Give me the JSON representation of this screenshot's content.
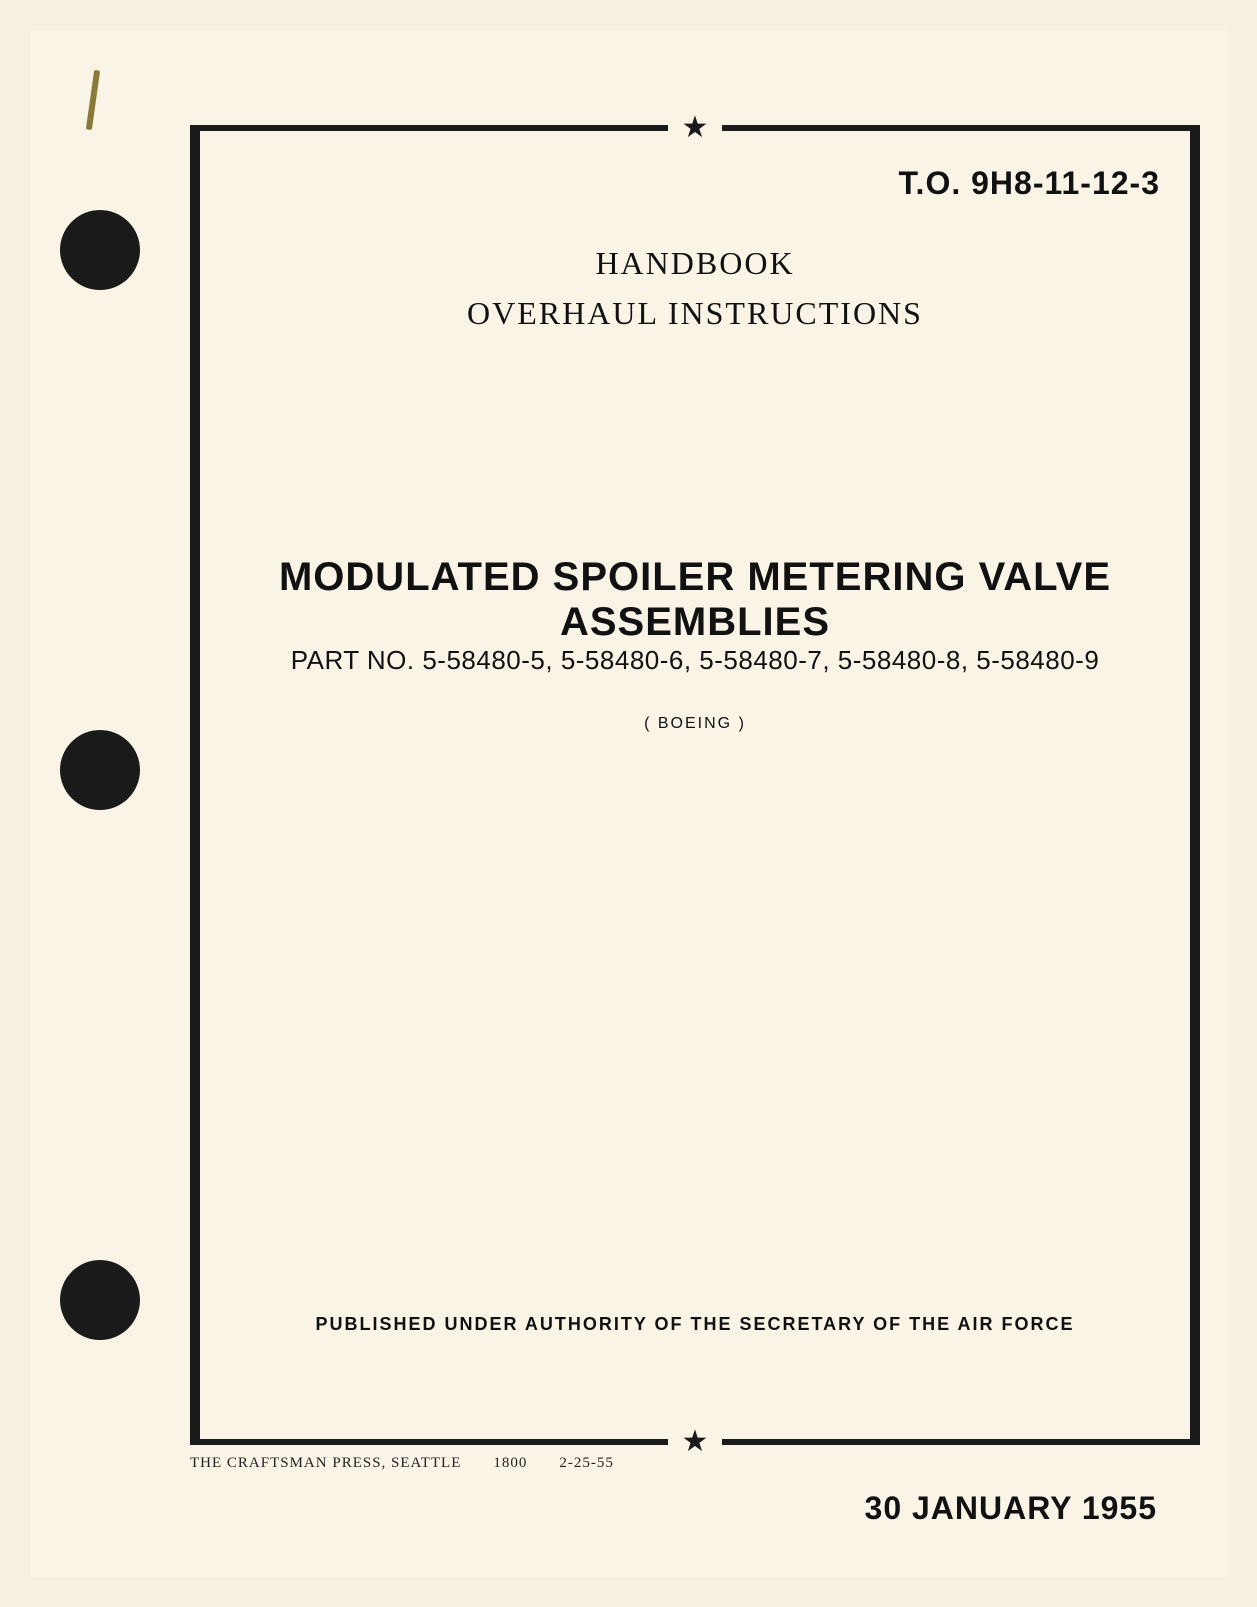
{
  "to_number": "T.O. 9H8-11-12-3",
  "heading_line1": "HANDBOOK",
  "heading_line2": "OVERHAUL INSTRUCTIONS",
  "title": "MODULATED SPOILER METERING VALVE ASSEMBLIES",
  "parts_line": "PART NO. 5-58480-5, 5-58480-6, 5-58480-7, 5-58480-8, 5-58480-9",
  "manufacturer": "( BOEING )",
  "authority": "PUBLISHED UNDER AUTHORITY OF THE SECRETARY OF THE AIR FORCE",
  "printer_line": "THE CRAFTSMAN PRESS, SEATTLE  1800  2-25-55",
  "date": "30 JANUARY 1955",
  "star_glyph": "★",
  "colors": {
    "page_bg": "#f9f4e6",
    "ink": "#1a1a1a",
    "text": "#111111"
  },
  "fonts": {
    "serif": "Times New Roman",
    "sans": "Arial"
  }
}
